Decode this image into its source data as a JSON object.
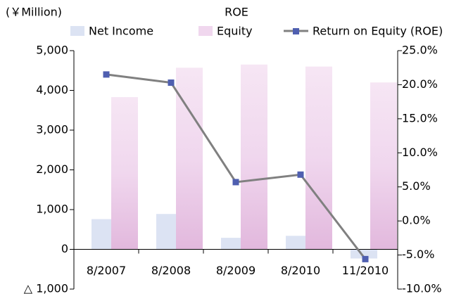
{
  "chart_data": {
    "type": "bar-line",
    "title": "ROE",
    "y_label": "(￥Million)",
    "categories": [
      "8/2007",
      "8/2008",
      "8/2009",
      "8/2010",
      "11/2010"
    ],
    "series": [
      {
        "name": "Net Income",
        "color": "#dce3f3",
        "values": [
          760,
          890,
          290,
          340,
          -230
        ]
      },
      {
        "name": "Equity",
        "color": "#f0d7ee",
        "values": [
          3830,
          4570,
          4650,
          4600,
          4200
        ]
      },
      {
        "name": "Return on Equity (ROE)",
        "color": "#808080",
        "marker_color": "#4f5fb0",
        "axis": "y2",
        "values": [
          21.5,
          20.3,
          5.7,
          6.8,
          -5.6
        ]
      }
    ],
    "ylim": [
      -1000,
      5000
    ],
    "yticks": [
      {
        "value": -1000,
        "label": "△ 1,000"
      },
      0,
      {
        "value": 1000,
        "label": "1,000"
      },
      {
        "value": 2000,
        "label": "2,000"
      },
      {
        "value": 3000,
        "label": "3,000"
      },
      {
        "value": 4000,
        "label": "4,000"
      },
      {
        "value": 5000,
        "label": "5,000"
      }
    ],
    "y2lim": [
      -10,
      25
    ],
    "y2ticks": [
      {
        "value": -10,
        "label": "-10.0%"
      },
      {
        "value": -5,
        "label": "-5.0%"
      },
      {
        "value": 0,
        "label": "0.0%"
      },
      {
        "value": 5,
        "label": "5.0%"
      },
      {
        "value": 10,
        "label": "10.0%"
      },
      {
        "value": 15,
        "label": "15.0%"
      },
      {
        "value": 20,
        "label": "20.0%"
      },
      {
        "value": 25,
        "label": "25.0%"
      }
    ]
  }
}
